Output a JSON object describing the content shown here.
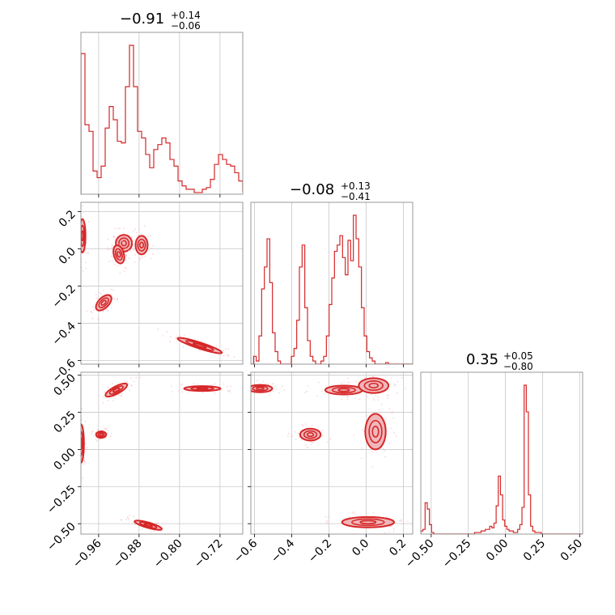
{
  "figure": {
    "titles": [
      {
        "value": "−0.91",
        "plus": "+0.14",
        "minus": "−0.06"
      },
      {
        "value": "−0.08",
        "plus": "+0.13",
        "minus": "−0.41"
      },
      {
        "value": "0.35",
        "plus": "+0.05",
        "minus": "−0.80"
      }
    ],
    "color": "#d62728",
    "fill_color": "#f0b7ba"
  },
  "chart_data": {
    "type": "corner",
    "parameters": [
      {
        "index": 0,
        "range": [
          -0.995,
          -0.675
        ],
        "ticks": [
          -0.96,
          -0.88,
          -0.8,
          -0.72
        ],
        "tick_labels": [
          "−0.96",
          "−0.88",
          "−0.80",
          "−0.72"
        ]
      },
      {
        "index": 1,
        "range": [
          -0.62,
          0.25
        ],
        "ticks": [
          -0.6,
          -0.4,
          -0.2,
          0.0,
          0.2
        ],
        "tick_labels": [
          "−0.6",
          "−0.4",
          "−0.2",
          "0.0",
          "0.2"
        ]
      },
      {
        "index": 2,
        "range": [
          -0.57,
          0.52
        ],
        "ticks": [
          -0.5,
          -0.25,
          0.0,
          0.25,
          0.5
        ],
        "tick_labels": [
          "−0.50",
          "−0.25",
          "0.00",
          "0.25",
          "0.50"
        ]
      }
    ],
    "histograms": [
      {
        "param": 0,
        "bin_edges_start": -0.995,
        "bin_width": 0.008,
        "counts": [
          0.85,
          0.42,
          0.38,
          0.14,
          0.1,
          0.17,
          0.4,
          0.53,
          0.45,
          0.32,
          0.31,
          0.65,
          0.9,
          0.65,
          0.38,
          0.34,
          0.24,
          0.16,
          0.27,
          0.3,
          0.34,
          0.31,
          0.21,
          0.17,
          0.08,
          0.05,
          0.03,
          0.03,
          0.01,
          0.01,
          0.03,
          0.04,
          0.09,
          0.18,
          0.24,
          0.21,
          0.18,
          0.17,
          0.13,
          0.08,
          0.02,
          0.01
        ]
      },
      {
        "param": 1,
        "bin_edges_start": -0.62,
        "bin_width": 0.0145,
        "counts": [
          0.0,
          0.05,
          0.02,
          0.18,
          0.48,
          0.62,
          0.8,
          0.52,
          0.2,
          0.08,
          0.02,
          0.0,
          0.0,
          0.0,
          0.0,
          0.05,
          0.1,
          0.28,
          0.62,
          0.76,
          0.36,
          0.15,
          0.05,
          0.02,
          0.0,
          0.0,
          0.02,
          0.05,
          0.18,
          0.38,
          0.55,
          0.72,
          0.76,
          0.82,
          0.68,
          0.57,
          0.79,
          0.66,
          0.95,
          0.8,
          0.62,
          0.36,
          0.18,
          0.08,
          0.04,
          0.02,
          0.0,
          0.0,
          0.0,
          0.0,
          0.01,
          0.0,
          0.0,
          0.0,
          0.0,
          0.0,
          0.0,
          0.0,
          0.0,
          0.0
        ]
      },
      {
        "param": 2,
        "bin_edges_start": -0.57,
        "bin_width": 0.0145,
        "counts": [
          0.02,
          0.03,
          0.2,
          0.16,
          0.06,
          0.01,
          0.0,
          0.0,
          0.0,
          0.0,
          0.0,
          0.0,
          0.0,
          0.0,
          0.0,
          0.0,
          0.0,
          0.0,
          0.0,
          0.0,
          0.0,
          0.0,
          0.0,
          0.0,
          0.0,
          0.01,
          0.01,
          0.01,
          0.02,
          0.02,
          0.03,
          0.03,
          0.05,
          0.04,
          0.07,
          0.18,
          0.37,
          0.25,
          0.09,
          0.05,
          0.03,
          0.02,
          0.02,
          0.01,
          0.01,
          0.03,
          0.06,
          0.17,
          0.95,
          0.78,
          0.25,
          0.05,
          0.02,
          0.01,
          0.01,
          0.01,
          0.0,
          0.0,
          0.0,
          0.0,
          0.0,
          0.0,
          0.0,
          0.0,
          0.0,
          0.0,
          0.0,
          0.0,
          0.0,
          0.0,
          0.0,
          0.0,
          0.0,
          0.0,
          0.0
        ]
      }
    ],
    "contour_blobs": [
      {
        "px": 0,
        "py": 1,
        "center": [
          -0.992,
          0.07
        ],
        "axes": [
          0.006,
          0.09
        ],
        "angle_deg": 0
      },
      {
        "px": 0,
        "py": 1,
        "center": [
          -0.91,
          0.03
        ],
        "axes": [
          0.016,
          0.045
        ],
        "angle_deg": 0
      },
      {
        "px": 0,
        "py": 1,
        "center": [
          -0.875,
          0.02
        ],
        "axes": [
          0.012,
          0.05
        ],
        "angle_deg": 0
      },
      {
        "px": 0,
        "py": 1,
        "center": [
          -0.92,
          -0.03
        ],
        "axes": [
          0.01,
          0.05
        ],
        "angle_deg": -15
      },
      {
        "px": 0,
        "py": 1,
        "center": [
          -0.95,
          -0.29
        ],
        "axes": [
          0.019,
          0.028
        ],
        "angle_deg": -45
      },
      {
        "px": 0,
        "py": 1,
        "center": [
          -0.76,
          -0.52
        ],
        "axes": [
          0.046,
          0.016
        ],
        "angle_deg": 18
      },
      {
        "px": 0,
        "py": 2,
        "center": [
          -0.995,
          0.04
        ],
        "axes": [
          0.006,
          0.13
        ],
        "angle_deg": 0
      },
      {
        "px": 0,
        "py": 2,
        "center": [
          -0.925,
          0.4
        ],
        "axes": [
          0.024,
          0.025
        ],
        "angle_deg": -28
      },
      {
        "px": 0,
        "py": 2,
        "center": [
          -0.955,
          0.1
        ],
        "axes": [
          0.01,
          0.022
        ],
        "angle_deg": 0
      },
      {
        "px": 0,
        "py": 2,
        "center": [
          -0.755,
          0.41
        ],
        "axes": [
          0.036,
          0.012
        ],
        "angle_deg": 0
      },
      {
        "px": 0,
        "py": 2,
        "center": [
          -0.862,
          -0.51
        ],
        "axes": [
          0.028,
          0.018
        ],
        "angle_deg": 16
      },
      {
        "px": 1,
        "py": 2,
        "center": [
          -0.57,
          0.41
        ],
        "axes": [
          0.065,
          0.025
        ],
        "angle_deg": 0
      },
      {
        "px": 1,
        "py": 2,
        "center": [
          -0.3,
          0.1
        ],
        "axes": [
          0.055,
          0.04
        ],
        "angle_deg": 0
      },
      {
        "px": 1,
        "py": 2,
        "center": [
          -0.12,
          0.4
        ],
        "axes": [
          0.1,
          0.03
        ],
        "angle_deg": 0
      },
      {
        "px": 1,
        "py": 2,
        "center": [
          0.04,
          0.43
        ],
        "axes": [
          0.08,
          0.05
        ],
        "angle_deg": 0
      },
      {
        "px": 1,
        "py": 2,
        "center": [
          0.05,
          0.12
        ],
        "axes": [
          0.055,
          0.12
        ],
        "angle_deg": 0
      },
      {
        "px": 1,
        "py": 2,
        "center": [
          0.01,
          -0.49
        ],
        "axes": [
          0.14,
          0.035
        ],
        "angle_deg": 0
      }
    ]
  }
}
